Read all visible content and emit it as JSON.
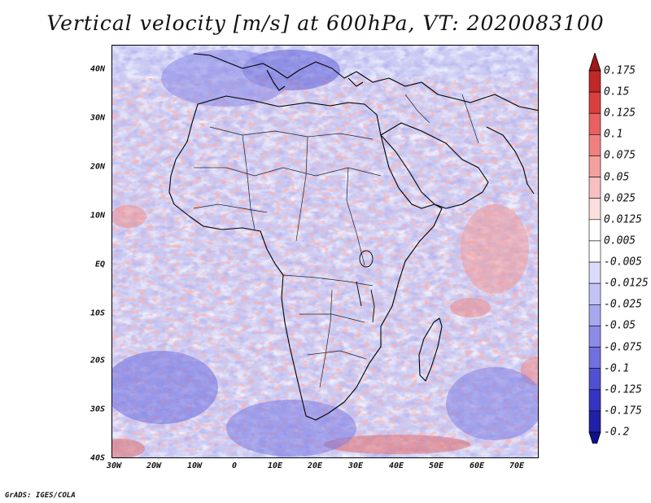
{
  "title": "Vertical velocity [m/s] at 600hPa, VT: 2020083100",
  "credit": "GrADS: IGES/COLA",
  "map": {
    "lat_labels": [
      "40N",
      "30N",
      "20N",
      "10N",
      "EQ",
      "10S",
      "20S",
      "30S",
      "40S"
    ],
    "lon_labels": [
      "30W",
      "20W",
      "10W",
      "0",
      "10E",
      "20E",
      "30E",
      "40E",
      "50E",
      "60E",
      "70E"
    ],
    "lat_range": [
      -40,
      45
    ],
    "lon_range": [
      -30,
      75
    ]
  },
  "colorbar": {
    "labels": [
      "0.175",
      "0.15",
      "0.125",
      "0.1",
      "0.075",
      "0.05",
      "0.025",
      "0.0125",
      "0.005",
      "-0.005",
      "-0.0125",
      "-0.025",
      "-0.05",
      "-0.075",
      "-0.1",
      "-0.125",
      "-0.175",
      "-0.2"
    ],
    "colors": [
      "#a01818",
      "#c02828",
      "#d84040",
      "#e86060",
      "#f08080",
      "#f4a0a0",
      "#f8c0c0",
      "#fbdede",
      "#ffffff",
      "#ffffff",
      "#dcdcfa",
      "#c4c4f4",
      "#a8a8ee",
      "#8c8ce6",
      "#7070de",
      "#5050d0",
      "#3434c0",
      "#2020a8",
      "#10108a"
    ]
  }
}
